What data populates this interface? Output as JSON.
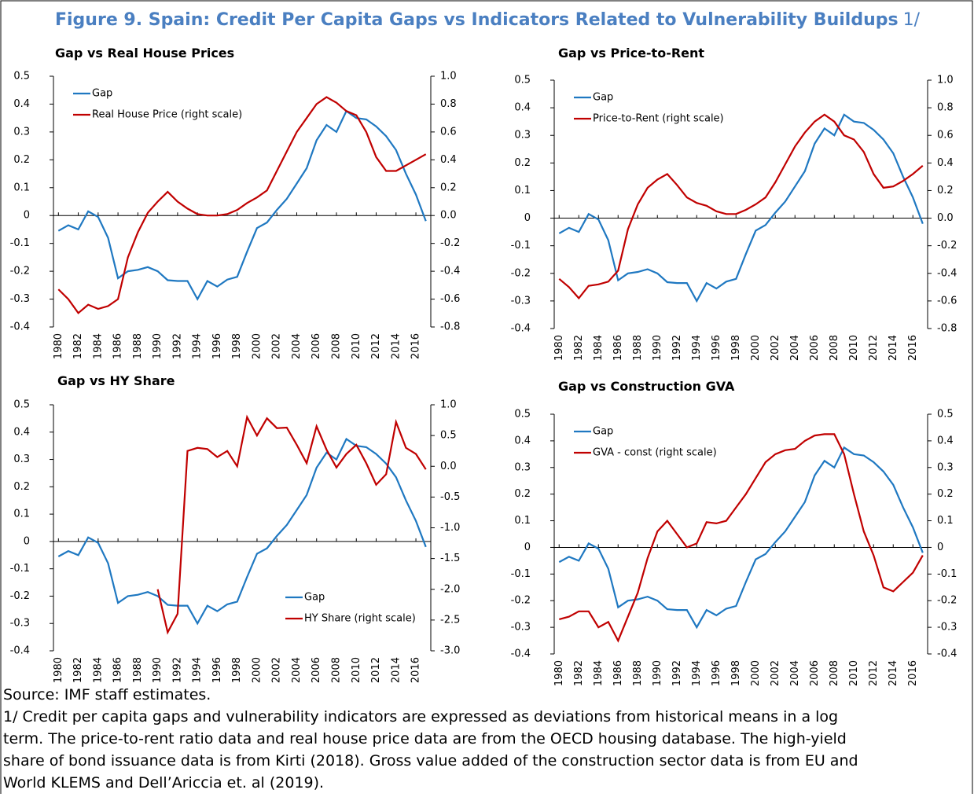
{
  "figure_title": "Figure 9. Spain: Credit Per Capita Gaps vs Indicators Related to Vulnerability Buildups",
  "figure_title_suffix": "1/",
  "source": "Source: IMF staff estimates.",
  "note_lines": [
    "1/ Credit per capita gaps and vulnerability indicators are expressed as deviations from historical means in a log",
    "term. The price-to-rent ratio data and real house price data are from the OECD housing database. The high-yield",
    "share of bond issuance data is from Kirti (2018). Gross value added of the construction sector data is from EU and",
    "World KLEMS and Dell’Ariccia et. al (2019)."
  ],
  "chart_data": [
    {
      "type": "line",
      "title": "Gap vs Real House Prices",
      "x": [
        1980,
        1981,
        1982,
        1983,
        1984,
        1985,
        1986,
        1987,
        1988,
        1989,
        1990,
        1991,
        1992,
        1993,
        1994,
        1995,
        1996,
        1997,
        1998,
        1999,
        2000,
        2001,
        2002,
        2003,
        2004,
        2005,
        2006,
        2007,
        2008,
        2009,
        2010,
        2011,
        2012,
        2013,
        2014,
        2015,
        2016,
        2017
      ],
      "xlim": [
        1979.5,
        2017.5
      ],
      "xticks": [
        1980,
        1982,
        1984,
        1986,
        1988,
        1990,
        1992,
        1994,
        1996,
        1998,
        2000,
        2002,
        2004,
        2006,
        2008,
        2010,
        2012,
        2014,
        2016
      ],
      "ylim": [
        -0.4,
        0.5
      ],
      "yticks": [
        0.5,
        0.4,
        0.3,
        0.2,
        0.1,
        0,
        -0.1,
        -0.2,
        -0.3,
        -0.4
      ],
      "y2lim": [
        -0.8,
        1.0
      ],
      "y2ticks": [
        {
          "value": 1,
          "label": "1.0"
        },
        0.8,
        0.6,
        0.4,
        0.2,
        {
          "value": 0,
          "label": "0.0"
        },
        -0.2,
        -0.4,
        -0.6,
        -0.8
      ],
      "legend": "upper left",
      "series": [
        {
          "name": "Gap",
          "color": "#1f78c1",
          "values": [
            -0.055,
            -0.035,
            -0.05,
            0.015,
            -0.005,
            -0.08,
            -0.225,
            -0.2,
            -0.195,
            -0.185,
            -0.2,
            -0.232,
            -0.235,
            -0.235,
            -0.3,
            -0.235,
            -0.255,
            -0.23,
            -0.22,
            -0.13,
            -0.045,
            -0.025,
            0.02,
            0.06,
            0.115,
            0.17,
            0.27,
            0.325,
            0.3,
            0.375,
            0.35,
            0.345,
            0.32,
            0.285,
            0.235,
            0.15,
            0.075,
            -0.02
          ]
        },
        {
          "name": "Real House Price (right scale)",
          "color": "#c00000",
          "axis": "y2",
          "values": [
            -0.53,
            -0.6,
            -0.7,
            -0.64,
            -0.67,
            -0.65,
            -0.6,
            -0.3,
            -0.12,
            0.02,
            0.1,
            0.17,
            0.1,
            0.05,
            0.01,
            0,
            0,
            0.01,
            0.04,
            0.09,
            0.13,
            0.18,
            0.32,
            0.46,
            0.6,
            0.7,
            0.8,
            0.85,
            0.81,
            0.75,
            0.72,
            0.6,
            0.42,
            0.32,
            0.32,
            0.36,
            0.4,
            0.44
          ]
        }
      ]
    },
    {
      "type": "line",
      "title": "Gap vs Price-to-Rent",
      "x": [
        1980,
        1981,
        1982,
        1983,
        1984,
        1985,
        1986,
        1987,
        1988,
        1989,
        1990,
        1991,
        1992,
        1993,
        1994,
        1995,
        1996,
        1997,
        1998,
        1999,
        2000,
        2001,
        2002,
        2003,
        2004,
        2005,
        2006,
        2007,
        2008,
        2009,
        2010,
        2011,
        2012,
        2013,
        2014,
        2015,
        2016,
        2017
      ],
      "xlim": [
        1979.5,
        2017.5
      ],
      "xticks": [
        1980,
        1982,
        1984,
        1986,
        1988,
        1990,
        1992,
        1994,
        1996,
        1998,
        2000,
        2002,
        2004,
        2006,
        2008,
        2010,
        2012,
        2014,
        2016
      ],
      "ylim": [
        -0.4,
        0.5
      ],
      "yticks": [
        0.5,
        0.4,
        0.3,
        0.2,
        0.1,
        0,
        -0.1,
        -0.2,
        -0.3,
        -0.4
      ],
      "y2lim": [
        -0.8,
        1.0
      ],
      "y2ticks": [
        {
          "value": 1,
          "label": "1.0"
        },
        0.8,
        0.6,
        0.4,
        0.2,
        {
          "value": 0,
          "label": "0.0"
        },
        -0.2,
        -0.4,
        -0.6,
        -0.8
      ],
      "legend": "upper left",
      "series": [
        {
          "name": "Gap",
          "color": "#1f78c1",
          "values": [
            -0.055,
            -0.035,
            -0.05,
            0.015,
            -0.005,
            -0.08,
            -0.225,
            -0.2,
            -0.195,
            -0.185,
            -0.2,
            -0.232,
            -0.235,
            -0.235,
            -0.3,
            -0.235,
            -0.255,
            -0.23,
            -0.22,
            -0.13,
            -0.045,
            -0.025,
            0.02,
            0.06,
            0.115,
            0.17,
            0.27,
            0.325,
            0.3,
            0.375,
            0.35,
            0.345,
            0.32,
            0.285,
            0.235,
            0.15,
            0.075,
            -0.02
          ]
        },
        {
          "name": "Price-to-Rent (right scale)",
          "color": "#c00000",
          "axis": "y2",
          "values": [
            -0.44,
            -0.5,
            -0.58,
            -0.49,
            -0.48,
            -0.46,
            -0.38,
            -0.08,
            0.1,
            0.22,
            0.28,
            0.32,
            0.24,
            0.15,
            0.11,
            0.09,
            0.05,
            0.03,
            0.03,
            0.06,
            0.1,
            0.15,
            0.26,
            0.39,
            0.52,
            0.62,
            0.7,
            0.75,
            0.7,
            0.6,
            0.57,
            0.48,
            0.32,
            0.22,
            0.23,
            0.27,
            0.32,
            0.38
          ]
        }
      ]
    },
    {
      "type": "line",
      "title": "Gap vs HY Share",
      "x": [
        1980,
        1981,
        1982,
        1983,
        1984,
        1985,
        1986,
        1987,
        1988,
        1989,
        1990,
        1991,
        1992,
        1993,
        1994,
        1995,
        1996,
        1997,
        1998,
        1999,
        2000,
        2001,
        2002,
        2003,
        2004,
        2005,
        2006,
        2007,
        2008,
        2009,
        2010,
        2011,
        2012,
        2013,
        2014,
        2015,
        2016,
        2017
      ],
      "xlim": [
        1979.5,
        2017.5
      ],
      "xticks": [
        1980,
        1982,
        1984,
        1986,
        1988,
        1990,
        1992,
        1994,
        1996,
        1998,
        2000,
        2002,
        2004,
        2006,
        2008,
        2010,
        2012,
        2014,
        2016
      ],
      "ylim": [
        -0.4,
        0.5
      ],
      "yticks": [
        0.5,
        0.4,
        0.3,
        0.2,
        0.1,
        0,
        -0.1,
        -0.2,
        -0.3,
        -0.4
      ],
      "y2lim": [
        -3,
        1
      ],
      "y2ticks": [
        {
          "value": 1,
          "label": "1.0"
        },
        0.5,
        {
          "value": 0,
          "label": "0.0"
        },
        -0.5,
        {
          "value": -1,
          "label": "-1.0"
        },
        -1.5,
        {
          "value": -2,
          "label": "-2.0"
        },
        -2.5,
        {
          "value": -3,
          "label": "-3.0"
        }
      ],
      "legend": "lower right",
      "series": [
        {
          "name": "Gap",
          "color": "#1f78c1",
          "values": [
            -0.055,
            -0.035,
            -0.05,
            0.015,
            -0.005,
            -0.08,
            -0.225,
            -0.2,
            -0.195,
            -0.185,
            -0.2,
            -0.232,
            -0.235,
            -0.235,
            -0.3,
            -0.235,
            -0.255,
            -0.23,
            -0.22,
            -0.13,
            -0.045,
            -0.025,
            0.02,
            0.06,
            0.115,
            0.17,
            0.27,
            0.325,
            0.3,
            0.375,
            0.35,
            0.345,
            0.32,
            0.285,
            0.235,
            0.15,
            0.075,
            -0.02
          ]
        },
        {
          "name": "HY Share (right scale)",
          "color": "#c00000",
          "axis": "y2",
          "values": [
            null,
            null,
            null,
            null,
            null,
            null,
            null,
            null,
            null,
            null,
            -2.0,
            -2.7,
            -2.4,
            0.25,
            0.3,
            0.28,
            0.15,
            0.25,
            0.0,
            0.8,
            0.5,
            0.78,
            0.62,
            0.63,
            0.35,
            0.05,
            0.65,
            0.27,
            -0.02,
            0.2,
            0.35,
            0.05,
            -0.3,
            -0.13,
            0.72,
            0.3,
            0.2,
            -0.05
          ]
        }
      ]
    },
    {
      "type": "line",
      "title": "Gap vs Construction GVA",
      "x": [
        1980,
        1981,
        1982,
        1983,
        1984,
        1985,
        1986,
        1987,
        1988,
        1989,
        1990,
        1991,
        1992,
        1993,
        1994,
        1995,
        1996,
        1997,
        1998,
        1999,
        2000,
        2001,
        2002,
        2003,
        2004,
        2005,
        2006,
        2007,
        2008,
        2009,
        2010,
        2011,
        2012,
        2013,
        2014,
        2015,
        2016,
        2017
      ],
      "xlim": [
        1979.5,
        2017.5
      ],
      "xticks": [
        1980,
        1982,
        1984,
        1986,
        1988,
        1990,
        1992,
        1994,
        1996,
        1998,
        2000,
        2002,
        2004,
        2006,
        2008,
        2010,
        2012,
        2014,
        2016
      ],
      "ylim": [
        -0.4,
        0.5
      ],
      "yticks": [
        0.5,
        0.4,
        0.3,
        0.2,
        0.1,
        0,
        -0.1,
        -0.2,
        -0.3,
        -0.4
      ],
      "y2lim": [
        -0.4,
        0.5
      ],
      "y2ticks": [
        0.5,
        0.4,
        0.3,
        0.2,
        0.1,
        0,
        -0.1,
        -0.2,
        -0.3,
        -0.4
      ],
      "legend": "upper left",
      "series": [
        {
          "name": "Gap",
          "color": "#1f78c1",
          "values": [
            -0.055,
            -0.035,
            -0.05,
            0.015,
            -0.005,
            -0.08,
            -0.225,
            -0.2,
            -0.195,
            -0.185,
            -0.2,
            -0.232,
            -0.235,
            -0.235,
            -0.3,
            -0.235,
            -0.255,
            -0.23,
            -0.22,
            -0.13,
            -0.045,
            -0.025,
            0.02,
            0.06,
            0.115,
            0.17,
            0.27,
            0.325,
            0.3,
            0.375,
            0.35,
            0.345,
            0.32,
            0.285,
            0.235,
            0.15,
            0.075,
            -0.02
          ]
        },
        {
          "name": "GVA - const (right scale)",
          "color": "#c00000",
          "axis": "y2",
          "values": [
            -0.27,
            -0.26,
            -0.24,
            -0.24,
            -0.3,
            -0.28,
            -0.35,
            -0.26,
            -0.17,
            -0.04,
            0.06,
            0.1,
            0.05,
            0,
            0.015,
            0.095,
            0.09,
            0.1,
            0.15,
            0.2,
            0.26,
            0.32,
            0.35,
            0.365,
            0.37,
            0.4,
            0.42,
            0.425,
            0.425,
            0.35,
            0.2,
            0.06,
            -0.03,
            -0.15,
            -0.165,
            -0.13,
            -0.095,
            -0.03
          ]
        }
      ]
    }
  ]
}
